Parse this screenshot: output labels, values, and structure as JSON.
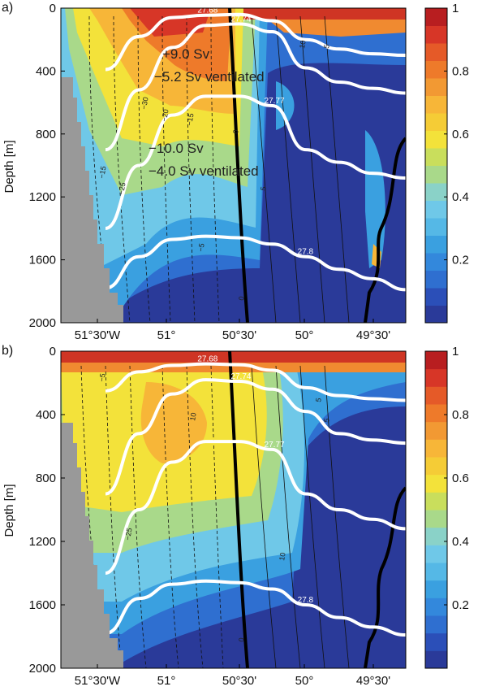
{
  "chart_data": [
    {
      "type": "heatmap",
      "panel_label": "a)",
      "ylabel": "Depth [m]",
      "yticks": [
        "0",
        "400",
        "800",
        "1200",
        "1600",
        "2000"
      ],
      "ylim": [
        0,
        2000
      ],
      "xticks": [
        "51°30'W",
        "51°",
        "50°30'",
        "50°",
        "49°30'"
      ],
      "colorbar": {
        "ticks": [
          "1",
          "0.8",
          "0.6",
          "0.4",
          "0.2"
        ],
        "range": [
          0,
          1
        ]
      },
      "isopycnals": [
        {
          "label": "27.68",
          "depths": [
            390,
            180,
            60,
            45,
            40,
            80,
            200,
            260,
            290,
            300
          ]
        },
        {
          "label": "27.74",
          "depths": [
            900,
            520,
            250,
            110,
            100,
            150,
            380,
            470,
            510,
            540
          ]
        },
        {
          "label": "27.77",
          "depths": [
            1400,
            1000,
            680,
            560,
            560,
            620,
            900,
            980,
            1050,
            1080
          ]
        },
        {
          "label": "27.8",
          "depths": [
            1780,
            1580,
            1470,
            1450,
            1460,
            1500,
            1580,
            1660,
            1720,
            1790
          ]
        }
      ],
      "annotations": [
        "+9.0 Sv",
        "−5.2 Sv ventilated",
        "−10.0 Sv",
        "−4.0 Sv ventilated"
      ],
      "contour_labels": [
        "−30",
        "−20",
        "−15",
        "−25",
        "0",
        "5",
        "10",
        "−15",
        "−5",
        "5",
        "0"
      ]
    },
    {
      "type": "heatmap",
      "panel_label": "b)",
      "ylabel": "Depth [m]",
      "yticks": [
        "0",
        "400",
        "800",
        "1200",
        "1600",
        "2000"
      ],
      "ylim": [
        0,
        2000
      ],
      "xticks": [
        "51°30'W",
        "51°",
        "50°30'",
        "50°",
        "49°30'"
      ],
      "colorbar": {
        "ticks": [
          "1",
          "0.8",
          "0.6",
          "0.4",
          "0.2"
        ],
        "range": [
          0,
          1
        ]
      },
      "isopycnals": [
        {
          "label": "27.68",
          "depths": [
            250,
            130,
            90,
            80,
            85,
            120,
            230,
            280,
            300,
            310
          ]
        },
        {
          "label": "27.74",
          "depths": [
            900,
            520,
            270,
            180,
            190,
            240,
            380,
            520,
            560,
            580
          ]
        },
        {
          "label": "27.77",
          "depths": [
            1400,
            1000,
            700,
            570,
            570,
            620,
            900,
            1000,
            1060,
            1120
          ]
        },
        {
          "label": "27.8",
          "depths": [
            1780,
            1560,
            1470,
            1450,
            1460,
            1500,
            1600,
            1680,
            1740,
            1790
          ]
        }
      ],
      "contour_labels": [
        "−5",
        "10",
        "−25",
        "5",
        "10",
        "5",
        "0"
      ]
    }
  ]
}
